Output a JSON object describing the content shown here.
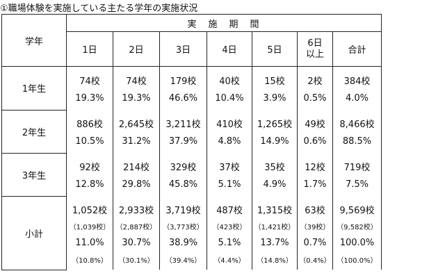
{
  "title": "①職場体験を実施している主たる学年の実施状況",
  "table": {
    "row_header": "学年",
    "span_header": "実　施　期　間",
    "columns": [
      "1日",
      "2日",
      "3日",
      "4日",
      "5日",
      "6日以上",
      "合計"
    ],
    "rows": [
      {
        "label": "1年生",
        "lines": [
          [
            "74校",
            "74校",
            "179校",
            "40校",
            "15校",
            "2校",
            "384校"
          ],
          [
            "19.3%",
            "19.3%",
            "46.6%",
            "10.4%",
            "3.9%",
            "0.5%",
            "4.0%"
          ]
        ]
      },
      {
        "label": "2年生",
        "lines": [
          [
            "886校",
            "2,645校",
            "3,211校",
            "410校",
            "1,265校",
            "49校",
            "8,466校"
          ],
          [
            "10.5%",
            "31.2%",
            "37.9%",
            "4.8%",
            "14.9%",
            "0.6%",
            "88.5%"
          ]
        ]
      },
      {
        "label": "3年生",
        "lines": [
          [
            "92校",
            "214校",
            "329校",
            "37校",
            "35校",
            "12校",
            "719校"
          ],
          [
            "12.8%",
            "29.8%",
            "45.8%",
            "5.1%",
            "4.9%",
            "1.7%",
            "7.5%"
          ]
        ]
      },
      {
        "label": "小計",
        "lines": [
          [
            "1,052校",
            "2,933校",
            "3,719校",
            "487校",
            "1,315校",
            "63校",
            "9,569校"
          ],
          [
            "（1,039校）",
            "（2,887校）",
            "（3,773校）",
            "（423校）",
            "（1,421校）",
            "（39校）",
            "（9,582校）"
          ],
          [
            "11.0%",
            "30.7%",
            "38.9%",
            "5.1%",
            "13.7%",
            "0.7%",
            "100.0%"
          ],
          [
            "（10.8%）",
            "（30.1%）",
            "（39.4%）",
            "（4.4%）",
            "（14.8%）",
            "（0.4%）",
            "（100.0%）"
          ]
        ]
      }
    ]
  }
}
